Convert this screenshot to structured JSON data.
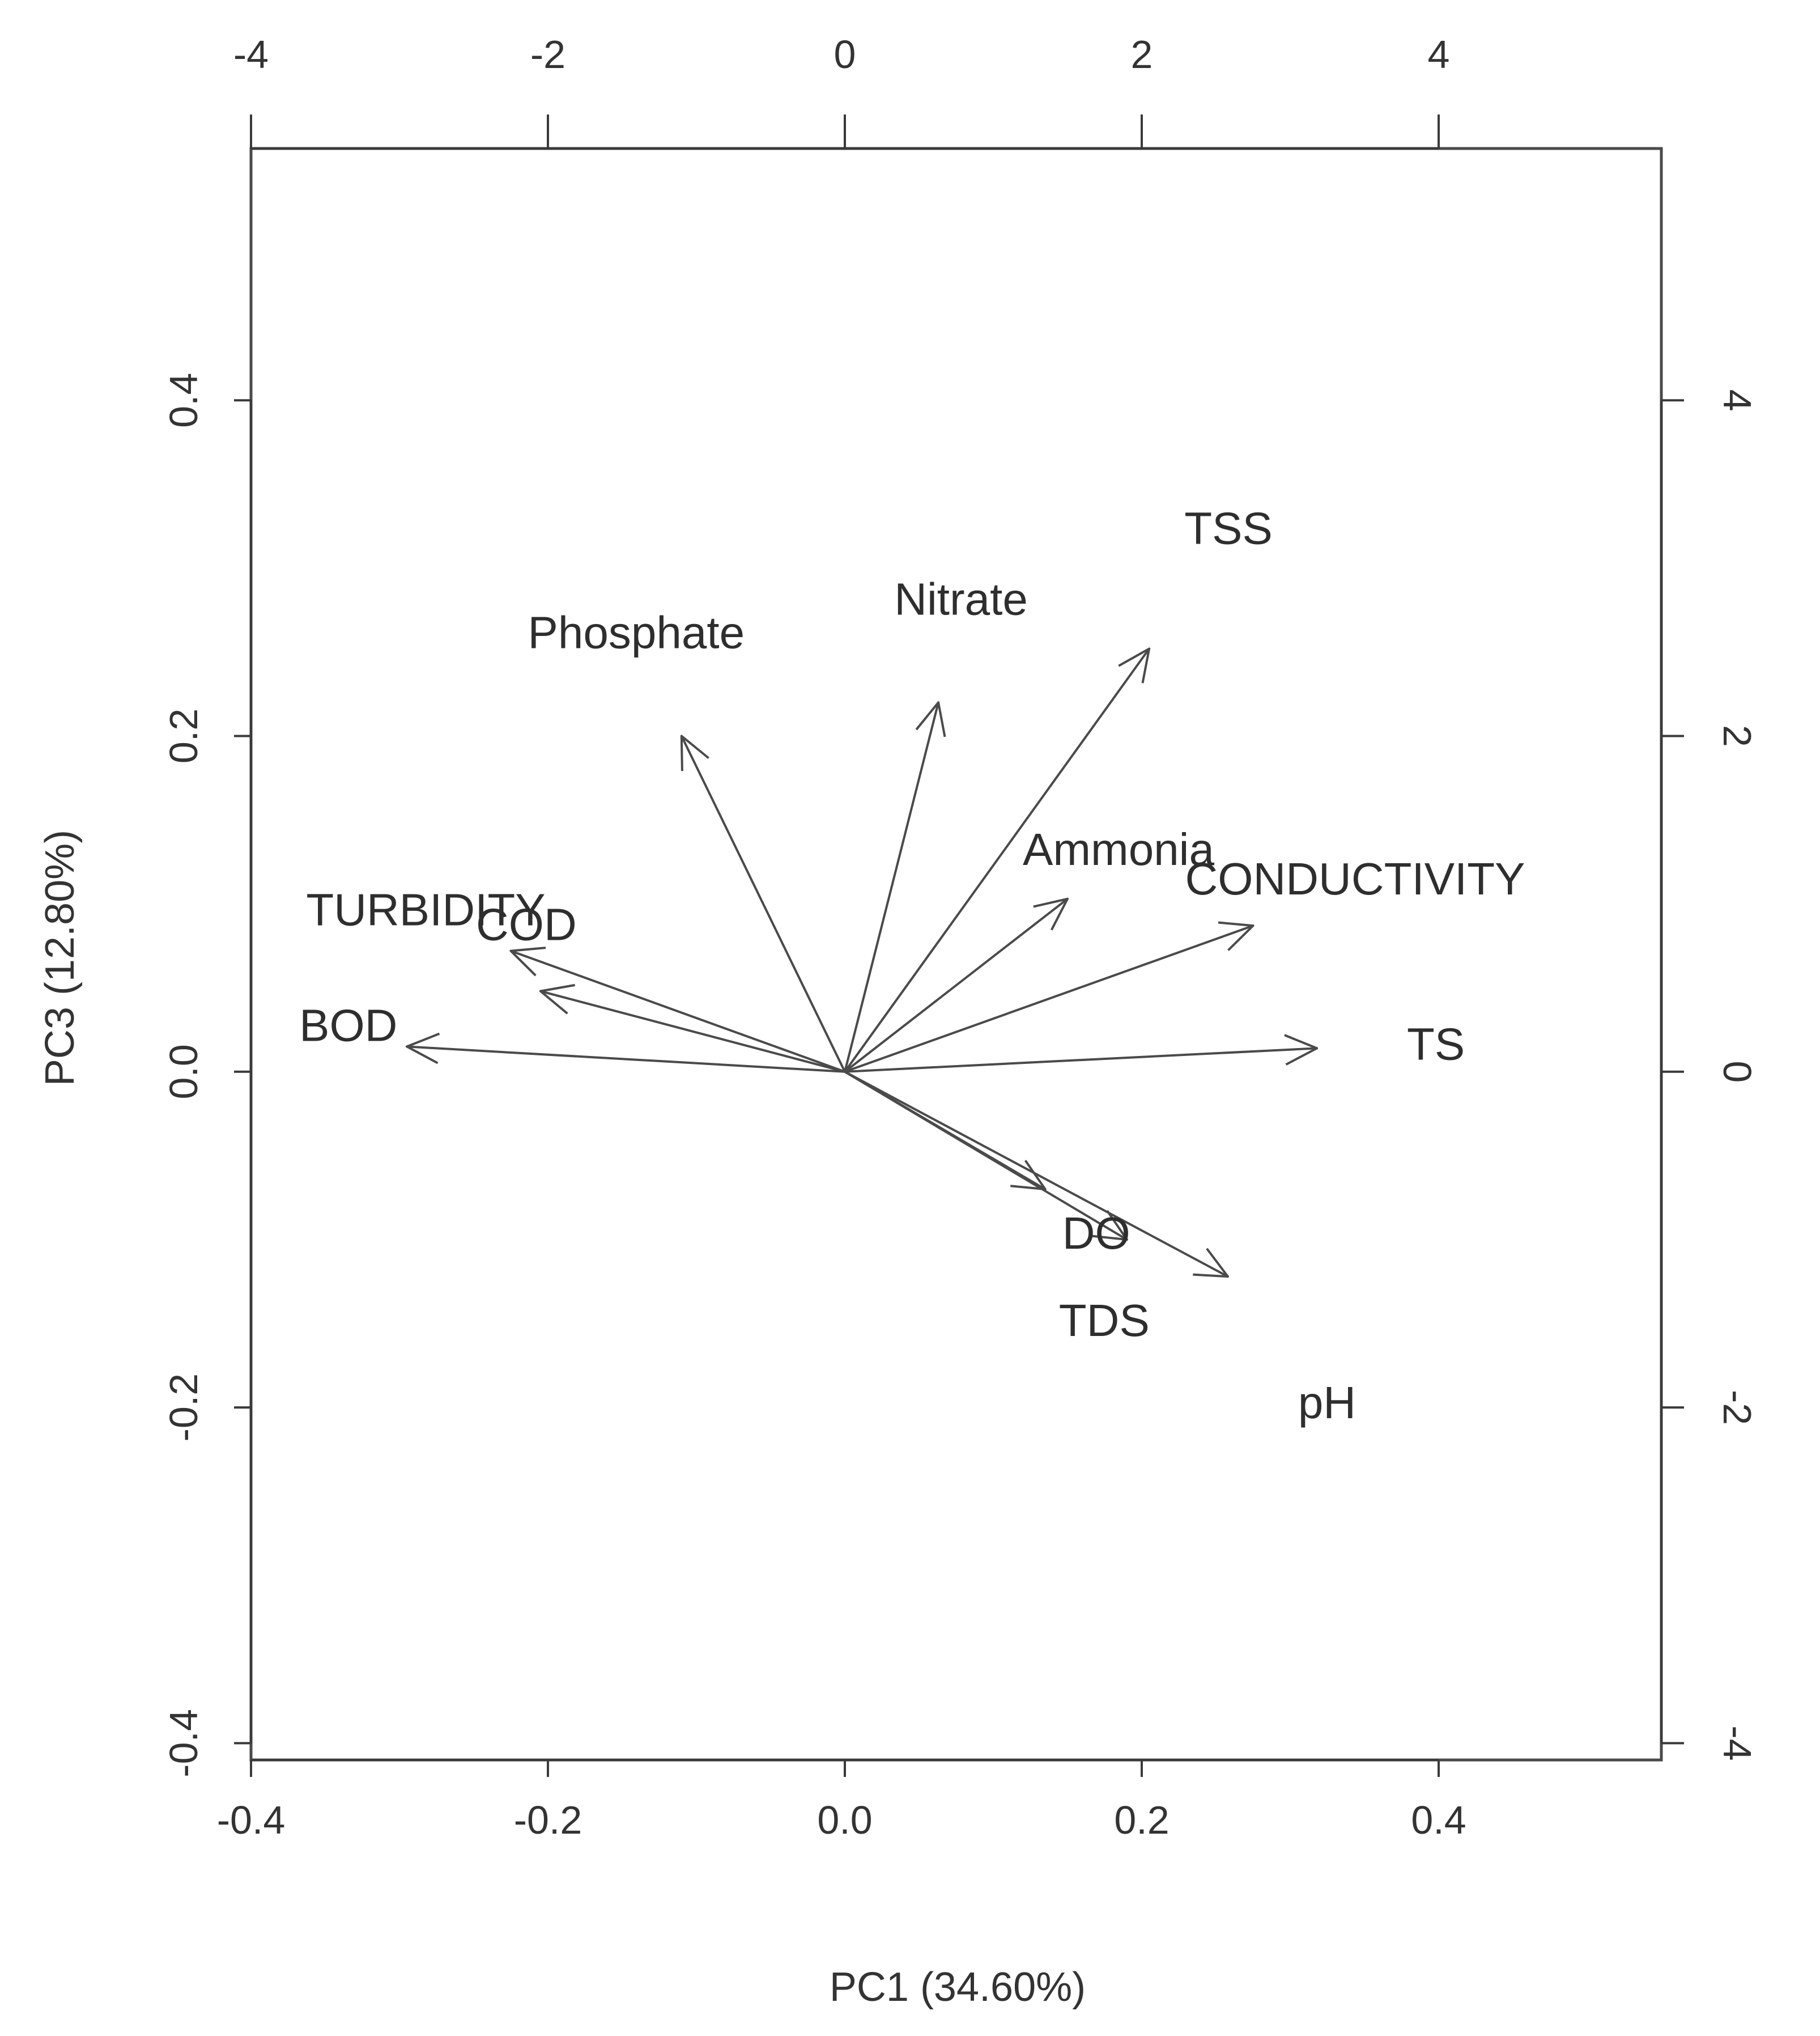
{
  "chart_data": {
    "type": "biplot",
    "xlabel": "PC1 (34.60%)",
    "ylabel": "PC3 (12.80%)",
    "xlim": [
      -0.4,
      0.55
    ],
    "ylim": [
      -0.41,
      0.55
    ],
    "x_ticks": [
      "-0.4",
      "-0.2",
      "0.0",
      "0.2",
      "0.4"
    ],
    "y_ticks": [
      "-0.4",
      "-0.2",
      "0.0",
      "0.2",
      "0.4"
    ],
    "top_ticks": [
      "-4",
      "-2",
      "0",
      "2",
      "4"
    ],
    "right_ticks": [
      "-4",
      "-2",
      "0",
      "2",
      "4"
    ],
    "loadings": [
      {
        "name": "BOD",
        "x": -0.295,
        "y": 0.015
      },
      {
        "name": "COD",
        "x": -0.205,
        "y": 0.048
      },
      {
        "name": "TURBIDITY",
        "x": -0.225,
        "y": 0.072
      },
      {
        "name": "Phosphate",
        "x": -0.11,
        "y": 0.2
      },
      {
        "name": "Nitrate",
        "x": 0.063,
        "y": 0.22
      },
      {
        "name": "TSS",
        "x": 0.205,
        "y": 0.252
      },
      {
        "name": "Ammonia",
        "x": 0.15,
        "y": 0.103
      },
      {
        "name": "CONDUCTIVITY",
        "x": 0.275,
        "y": 0.087
      },
      {
        "name": "TS",
        "x": 0.318,
        "y": 0.014
      },
      {
        "name": "DO",
        "x": 0.135,
        "y": -0.07
      },
      {
        "name": "TDS",
        "x": 0.19,
        "y": -0.1
      },
      {
        "name": "pH",
        "x": 0.258,
        "y": -0.122
      }
    ]
  }
}
